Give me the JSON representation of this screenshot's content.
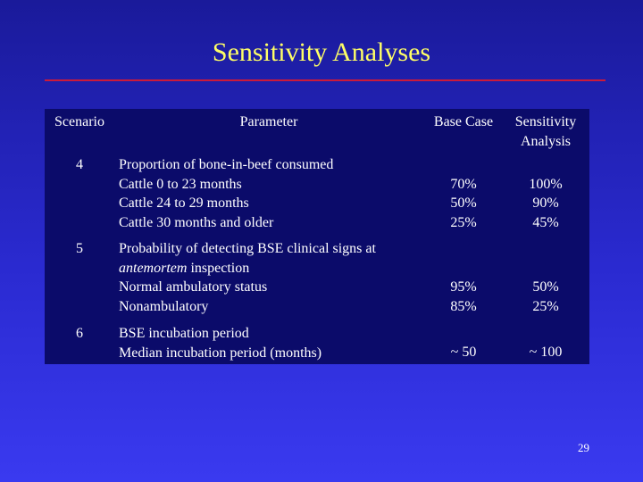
{
  "slide": {
    "title": "Sensitivity Analyses",
    "page_number": "29",
    "colors": {
      "background": "#2a2ad0",
      "title": "#ffff66",
      "rule": "#cc1a3a",
      "table_cell": "#0b0b6a",
      "text": "#ffffff"
    }
  },
  "table": {
    "headers": {
      "scenario": "Scenario",
      "parameter": "Parameter",
      "base_case": "Base Case",
      "sensitivity_line1": "Sensitivity",
      "sensitivity_line2": "Analysis"
    },
    "rows": [
      {
        "scenario": "4",
        "parameter_lines": [
          "Proportion of bone-in-beef consumed",
          "Cattle 0 to 23 months",
          "Cattle 24 to 29 months",
          "Cattle 30 months and older"
        ],
        "base_values": [
          "70%",
          "50%",
          "25%"
        ],
        "sensitivity_values": [
          "100%",
          "90%",
          "45%"
        ]
      },
      {
        "scenario": "5",
        "parameter_line1": "Probability of detecting BSE clinical signs at",
        "parameter_italic": "antemortem",
        "parameter_line2_rest": " inspection",
        "parameter_line3": "Normal ambulatory status",
        "parameter_line4": "Nonambulatory",
        "base_values": [
          "95%",
          "85%"
        ],
        "sensitivity_values": [
          "50%",
          "25%"
        ]
      },
      {
        "scenario": "6",
        "parameter_lines": [
          "BSE incubation period",
          "Median incubation period (months)"
        ],
        "base_values": [
          "~ 50"
        ],
        "sensitivity_values": [
          "~ 100"
        ]
      }
    ]
  }
}
